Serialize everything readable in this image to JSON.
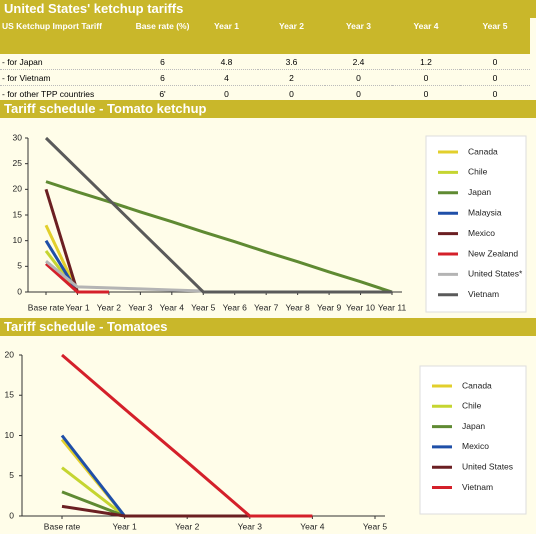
{
  "table": {
    "title": "United States' ketchup tariffs",
    "columns": [
      "US Ketchup Import Tariff",
      "Base rate (%)",
      "Year 1",
      "Year 2",
      "Year 3",
      "Year 4",
      "Year 5"
    ],
    "rows": [
      [
        "- for Japan",
        6,
        4.8,
        3.6,
        2.4,
        1.2,
        0
      ],
      [
        "- for Vietnam",
        6,
        4,
        2,
        0,
        0,
        0
      ],
      [
        "- for other TPP countries",
        "6'",
        0,
        0,
        0,
        0,
        0
      ]
    ]
  },
  "chart_data": [
    {
      "type": "line",
      "title": "Tariff schedule - Tomato ketchup",
      "categories": [
        "Base rate",
        "Year 1",
        "Year 2",
        "Year 3",
        "Year 4",
        "Year 5",
        "Year 6",
        "Year 7",
        "Year 8",
        "Year 9",
        "Year 10",
        "Year 11"
      ],
      "ylim": [
        0,
        30
      ],
      "yticks": [
        0,
        5,
        10,
        15,
        20,
        25,
        30
      ],
      "legend": "right",
      "series": [
        {
          "name": "Canada",
          "color": "#e2cf2c",
          "values": [
            13,
            0,
            0,
            null,
            null,
            null,
            null,
            null,
            null,
            null,
            null,
            null
          ]
        },
        {
          "name": "Chile",
          "color": "#c5d531",
          "values": [
            8,
            0,
            0,
            null,
            null,
            null,
            null,
            null,
            null,
            null,
            null,
            null
          ]
        },
        {
          "name": "Japan",
          "color": "#5f8a32",
          "values": [
            21.5,
            19.5,
            17.6,
            15.6,
            13.7,
            11.7,
            9.8,
            7.8,
            5.9,
            3.9,
            2,
            0
          ]
        },
        {
          "name": "Malaysia",
          "color": "#1f4fa8",
          "values": [
            10,
            0,
            null,
            null,
            null,
            null,
            null,
            null,
            null,
            null,
            null,
            null
          ]
        },
        {
          "name": "Mexico",
          "color": "#6b1f22",
          "values": [
            20,
            0,
            0,
            null,
            null,
            null,
            null,
            null,
            null,
            null,
            null,
            null
          ]
        },
        {
          "name": "New Zealand",
          "color": "#d4202a",
          "values": [
            5.5,
            0,
            0,
            null,
            null,
            null,
            null,
            null,
            null,
            null,
            null,
            null
          ]
        },
        {
          "name": "United States*",
          "color": "#b4b4b4",
          "values": [
            6,
            1,
            0.8,
            0.6,
            0.4,
            0.2,
            null,
            null,
            null,
            null,
            null,
            null
          ]
        },
        {
          "name": "Vietnam",
          "color": "#5a5a5a",
          "values": [
            30,
            24,
            18,
            12,
            6,
            0,
            0,
            0,
            0,
            0,
            0,
            0
          ]
        }
      ]
    },
    {
      "type": "line",
      "title": "Tariff schedule - Tomatoes",
      "categories": [
        "Base rate",
        "Year 1",
        "Year 2",
        "Year 3",
        "Year 4",
        "Year 5"
      ],
      "ylim": [
        0,
        20
      ],
      "yticks": [
        0,
        5,
        10,
        15,
        20
      ],
      "legend": "right",
      "series": [
        {
          "name": "Canada",
          "color": "#e2cf2c",
          "values": [
            9.5,
            0,
            null,
            null,
            null,
            null
          ]
        },
        {
          "name": "Chile",
          "color": "#c5d531",
          "values": [
            6,
            0,
            null,
            null,
            null,
            null
          ]
        },
        {
          "name": "Japan",
          "color": "#5f8a32",
          "values": [
            3,
            0,
            null,
            null,
            null,
            null
          ]
        },
        {
          "name": "Mexico",
          "color": "#1f4fa8",
          "values": [
            10,
            0,
            null,
            null,
            null,
            null
          ]
        },
        {
          "name": "United States",
          "color": "#6b1f22",
          "values": [
            1.2,
            0,
            0,
            0,
            null,
            null
          ]
        },
        {
          "name": "Vietnam",
          "color": "#d4202a",
          "values": [
            20,
            13.3,
            6.7,
            0,
            0,
            null
          ]
        }
      ]
    }
  ]
}
